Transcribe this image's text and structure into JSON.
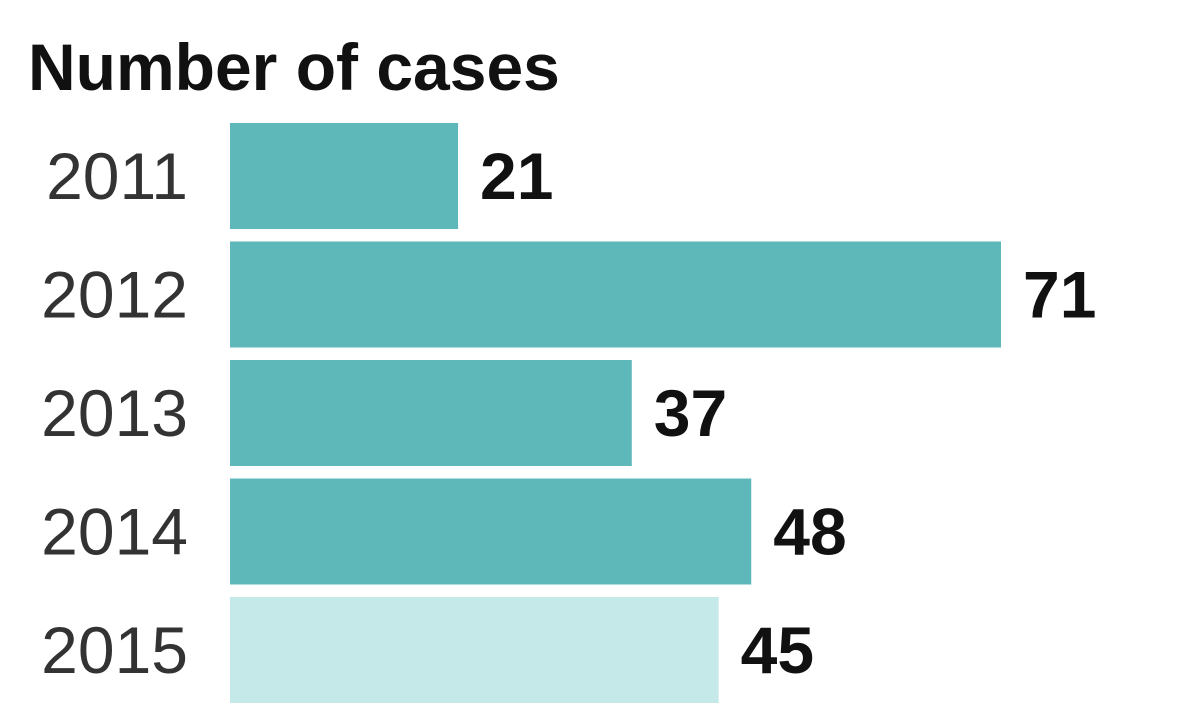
{
  "chart_data": {
    "type": "bar",
    "orientation": "horizontal",
    "title": "Number of cases",
    "xlabel": "",
    "ylabel": "",
    "categories": [
      "2011",
      "2012",
      "2013",
      "2014",
      "2015"
    ],
    "values": [
      21,
      71,
      37,
      48,
      45
    ],
    "value_labels": [
      "21",
      "71",
      "37",
      "48",
      "45"
    ],
    "xlim": [
      0,
      71
    ],
    "grid": false,
    "legend": "none",
    "colors": {
      "bar": "#5eb7b8",
      "highlight_bar": "#c5e8e9",
      "text": "#111111",
      "category_text": "#333333"
    },
    "highlight_categories": [
      "2015"
    ]
  }
}
